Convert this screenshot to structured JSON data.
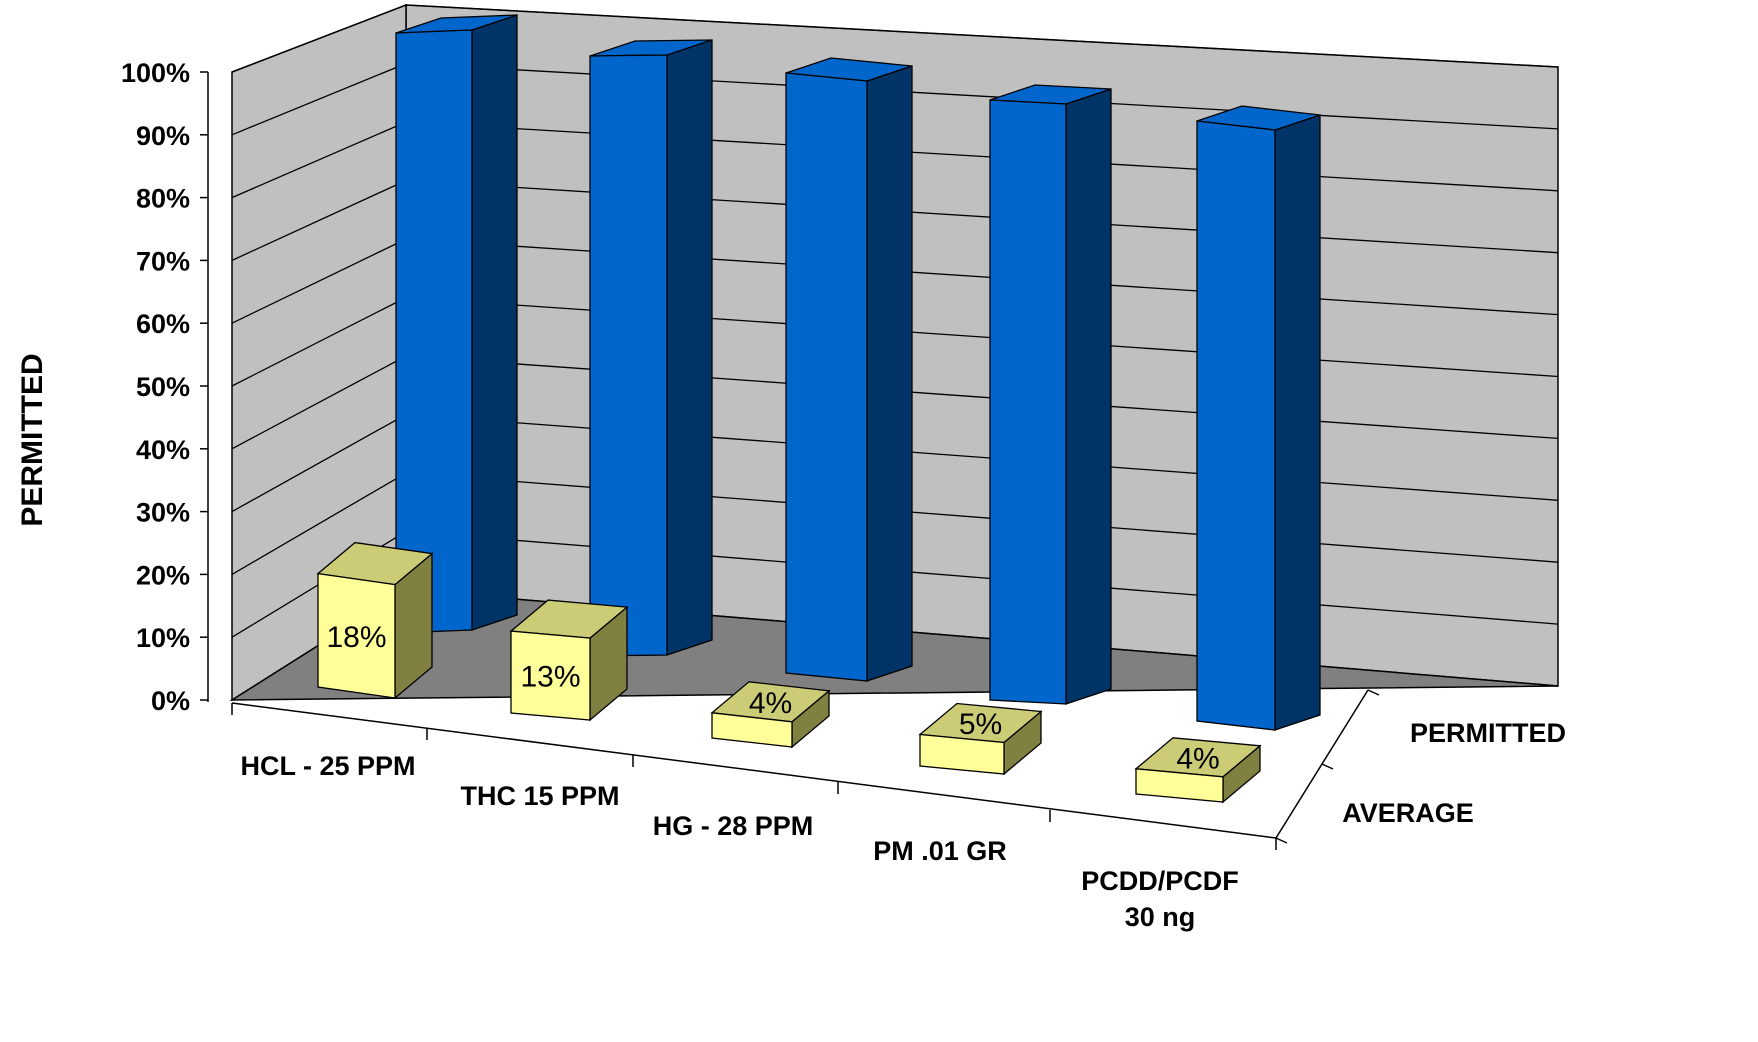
{
  "chart_data": {
    "type": "bar",
    "categories": [
      [
        "HCL - 25 PPM"
      ],
      [
        "THC 15 PPM"
      ],
      [
        "HG - 28 PPM"
      ],
      [
        "PM .01 GR"
      ],
      [
        "PCDD/PCDF",
        "30 ng"
      ]
    ],
    "series": [
      {
        "name": "PERMITTED",
        "values": [
          100,
          100,
          100,
          100,
          100
        ],
        "color": "#0066cc"
      },
      {
        "name": "AVERAGE",
        "values": [
          18,
          13,
          4,
          5,
          4
        ],
        "color": "#ffff99",
        "data_labels": [
          "18%",
          "13%",
          "4%",
          "5%",
          "4%"
        ]
      }
    ],
    "ylabel": "PERMITTED",
    "ylim": [
      0,
      100
    ],
    "y_ticks": [
      "0%",
      "10%",
      "20%",
      "30%",
      "40%",
      "50%",
      "60%",
      "70%",
      "80%",
      "90%",
      "100%"
    ],
    "gridlines": true,
    "style": "3d-column",
    "colors": {
      "back_wall": "#c0c0c0",
      "floor": "#808080",
      "permitted_front": "#0066cc",
      "permitted_side": "#003366",
      "average_front": "#ffff99",
      "average_top": "#cccc77",
      "average_side": "#808040"
    }
  }
}
